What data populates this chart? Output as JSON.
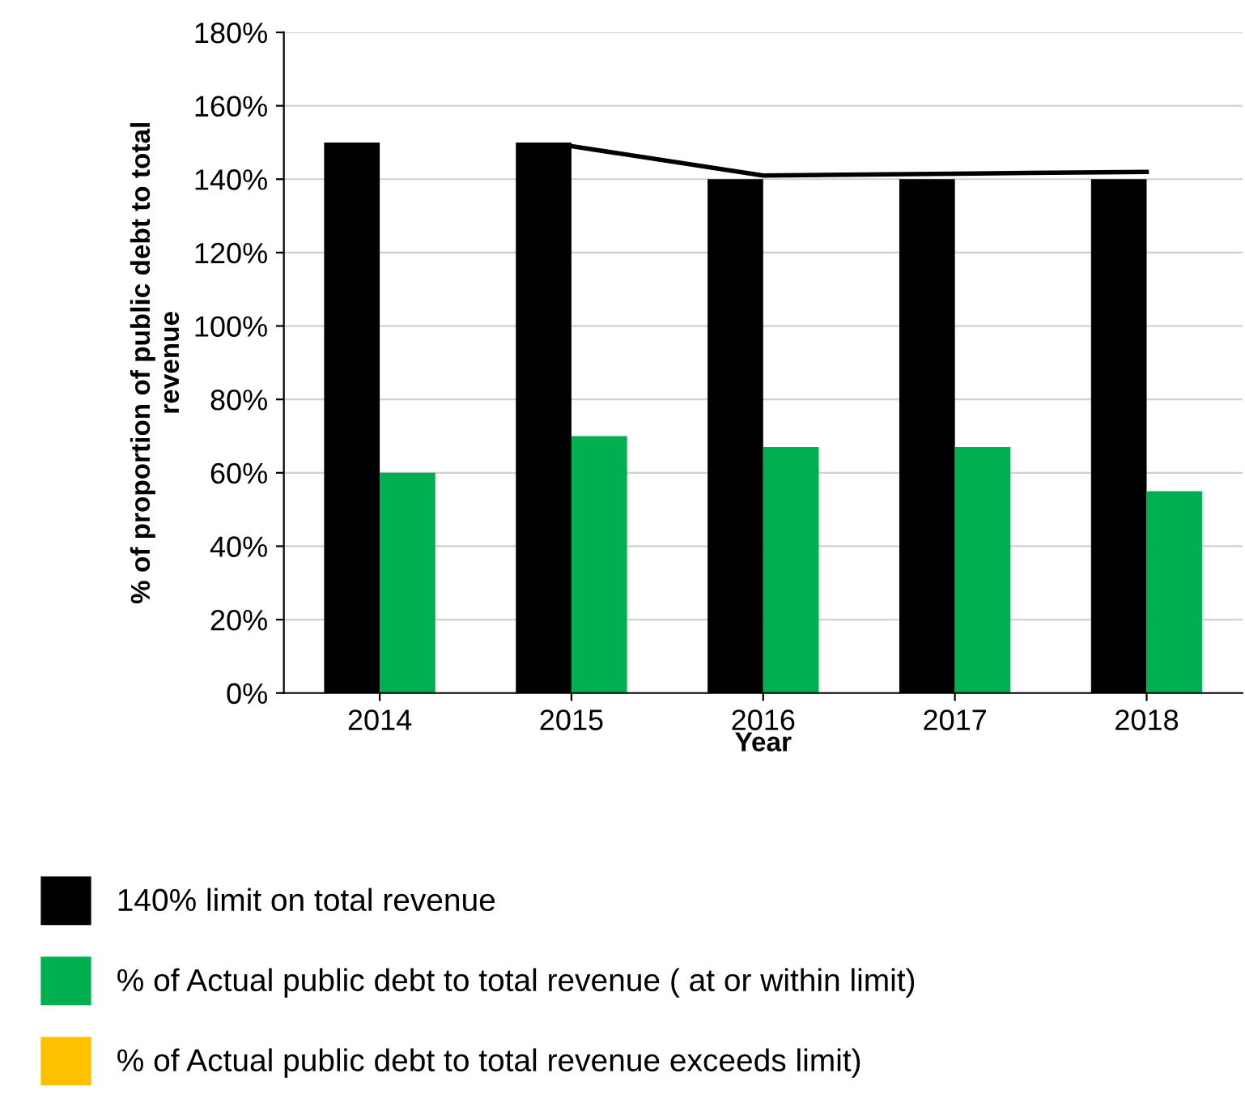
{
  "chart_data": {
    "type": "bar",
    "xlabel": "Year",
    "ylabel": "% of proportion of public debt to total\nrevenue",
    "categories": [
      "2014",
      "2015",
      "2016",
      "2017",
      "2018"
    ],
    "series": [
      {
        "name": "140% limit on total revenue",
        "color": "#000000",
        "values": [
          150,
          150,
          140,
          140,
          140
        ]
      },
      {
        "name": "% of Actual public debt to total revenue ( at or within limit)",
        "color": "#00b050",
        "values": [
          60,
          70,
          67,
          67,
          55
        ]
      },
      {
        "name": "% of Actual public debt to total revenue exceeds limit)",
        "color": "#ffc000",
        "values": [
          null,
          null,
          null,
          null,
          null
        ]
      },
      {
        "type": "line",
        "color": "#000000",
        "values": [
          null,
          149,
          141,
          141.5,
          142
        ]
      }
    ],
    "ylim": [
      0,
      180
    ],
    "yticks": [
      {
        "value": 0,
        "label": "0%"
      },
      {
        "value": 20,
        "label": "20%"
      },
      {
        "value": 40,
        "label": "40%"
      },
      {
        "value": 60,
        "label": "60%"
      },
      {
        "value": 80,
        "label": "80%"
      },
      {
        "value": 100,
        "label": "100%"
      },
      {
        "value": 120,
        "label": "120%"
      },
      {
        "value": 140,
        "label": "140%"
      },
      {
        "value": 160,
        "label": "160%"
      },
      {
        "value": 180,
        "label": "180%"
      }
    ],
    "grid": "y",
    "legend": "bottom"
  }
}
